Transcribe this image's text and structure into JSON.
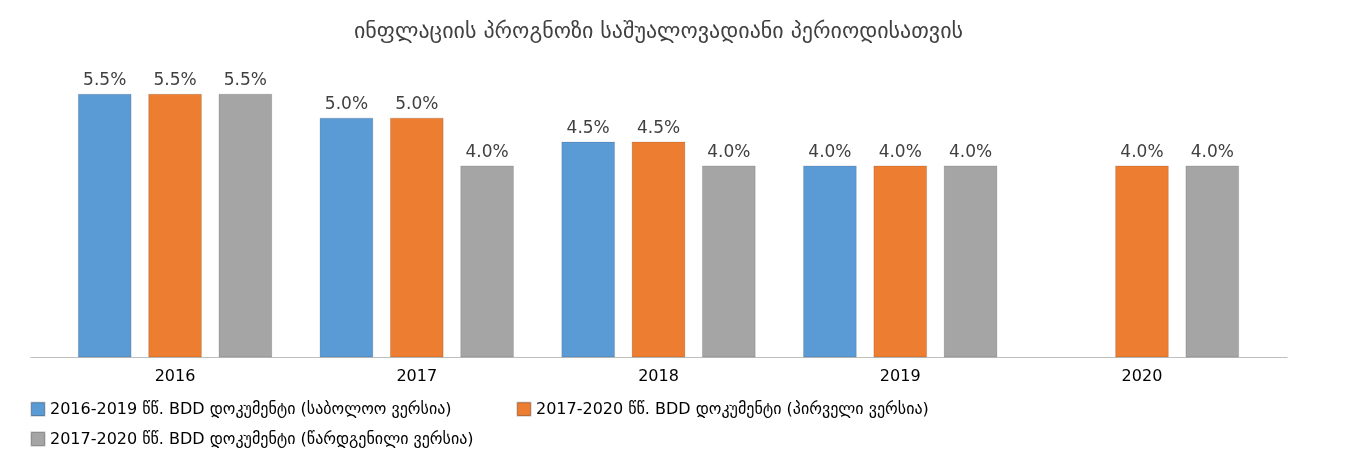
{
  "chart_data": {
    "type": "bar",
    "title": "ინფლაციის პროგნოზი საშუალოვადიანი პერიოდისათვის",
    "categories": [
      "2016",
      "2017",
      "2018",
      "2019",
      "2020"
    ],
    "series": [
      {
        "name": "2016-2019 წწ. BDD დოკუმენტი (საბოლოო ვერსია)",
        "color": "#5b9bd5",
        "values": [
          5.5,
          5.0,
          4.5,
          4.0,
          null
        ],
        "value_labels": [
          "5.5%",
          "5.0%",
          "4.5%",
          "4.0%",
          null
        ]
      },
      {
        "name": "2017-2020 წწ. BDD დოკუმენტი (პირველი ვერსია)",
        "color": "#ed7d31",
        "values": [
          5.5,
          5.0,
          4.5,
          4.0,
          4.0
        ],
        "value_labels": [
          "5.5%",
          "5.0%",
          "4.5%",
          "4.0%",
          "4.0%"
        ]
      },
      {
        "name": "2017-2020 წწ. BDD დოკუმენტი (წარდგენილი ვერსია)",
        "color": "#a5a5a5",
        "values": [
          5.5,
          4.0,
          4.0,
          4.0,
          4.0
        ],
        "value_labels": [
          "5.5%",
          "4.0%",
          "4.0%",
          "4.0%",
          "4.0%"
        ]
      }
    ],
    "tick_labels": "x",
    "grid": false,
    "legend": "bottom"
  }
}
